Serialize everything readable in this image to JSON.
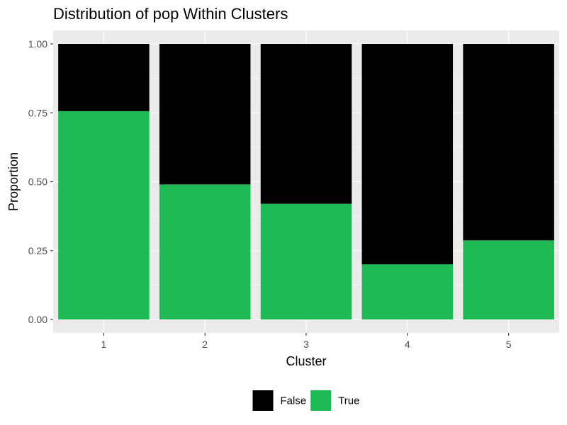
{
  "chart_data": {
    "type": "bar",
    "stacked": true,
    "title": "Distribution of pop Within Clusters",
    "xlabel": "Cluster",
    "ylabel": "Proportion",
    "categories": [
      "1",
      "2",
      "3",
      "4",
      "5"
    ],
    "ylim": [
      0,
      1
    ],
    "yticks": [
      "0.00",
      "0.25",
      "0.50",
      "0.75",
      "1.00"
    ],
    "ytick_values": [
      0,
      0.25,
      0.5,
      0.75,
      1.0
    ],
    "series": [
      {
        "name": "True",
        "color": "#1fb955",
        "values": [
          0.756,
          0.49,
          0.42,
          0.2,
          0.287
        ]
      },
      {
        "name": "False",
        "color": "#000000",
        "values": [
          0.244,
          0.51,
          0.58,
          0.8,
          0.713
        ]
      }
    ],
    "legend": {
      "position": "bottom",
      "entries": [
        {
          "label": "False",
          "color": "#000000"
        },
        {
          "label": "True",
          "color": "#1fb955"
        }
      ]
    },
    "grid": true,
    "panel_background": "#ebebeb",
    "grid_color": "#ffffff"
  }
}
